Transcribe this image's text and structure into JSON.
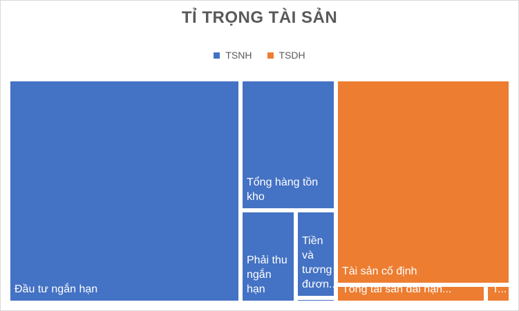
{
  "chart_data": {
    "type": "treemap",
    "title": "TỈ TRỌNG TÀI SẢN",
    "legend": [
      {
        "name": "TSNH",
        "color": "#4472c4"
      },
      {
        "name": "TSDH",
        "color": "#ed7d31"
      }
    ],
    "groups": [
      {
        "name": "TSNH",
        "color": "#4472c4",
        "items": [
          {
            "label": "Đầu tư ngắn hạn",
            "value": 46.0
          },
          {
            "label": "Tổng hàng tồn kho",
            "value": 11.1
          },
          {
            "label": "Phải thu ngắn hạn",
            "value": 4.5
          },
          {
            "label": "Tiền và tương đươn...",
            "value": 3.0
          },
          {
            "label": "",
            "value": 0.3
          }
        ]
      },
      {
        "name": "TSDH",
        "color": "#ed7d31",
        "items": [
          {
            "label": "Tài sản cố định",
            "value": 31.8
          },
          {
            "label": "Tổng tài sản dài hạn...",
            "value": 2.4
          },
          {
            "label": "T...",
            "value": 0.4
          }
        ]
      }
    ],
    "legend_position": "top"
  }
}
